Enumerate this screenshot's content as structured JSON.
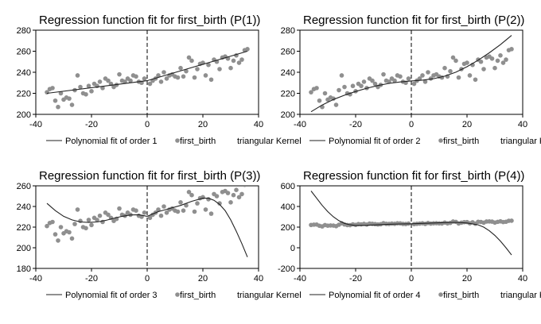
{
  "chart_data": [
    {
      "type": "scatter",
      "title": "Regression function fit for first_birth (P(1))",
      "xlabel": "",
      "ylabel": "",
      "xlim": [
        -40,
        40
      ],
      "ylim": [
        200,
        280
      ],
      "xticks": [
        "-40",
        "-20",
        "0",
        "20",
        "40"
      ],
      "yticks": [
        "200",
        "220",
        "240",
        "260",
        "280"
      ],
      "cutoff": 0,
      "legend": {
        "position": "bottom",
        "entries": [
          "Polynomial fit of order 1",
          "first_birth",
          "triangular Kernel"
        ]
      },
      "fit": {
        "x": [
          -36,
          0,
          0,
          36
        ],
        "y": [
          220,
          232,
          232,
          260
        ]
      },
      "points": {
        "x": [
          -36,
          -35,
          -34,
          -33,
          -32,
          -31,
          -30,
          -29,
          -28,
          -27,
          -26,
          -25,
          -24,
          -23,
          -22,
          -21,
          -20,
          -19,
          -18,
          -17,
          -16,
          -15,
          -14,
          -13,
          -12,
          -11,
          -10,
          -9,
          -8,
          -7,
          -6,
          -5,
          -4,
          -3,
          -2,
          -1,
          1,
          2,
          3,
          4,
          5,
          6,
          7,
          8,
          9,
          10,
          11,
          12,
          13,
          14,
          15,
          16,
          17,
          18,
          19,
          20,
          21,
          22,
          23,
          24,
          25,
          26,
          27,
          28,
          29,
          30,
          31,
          32,
          33,
          34,
          35,
          36
        ],
        "y": [
          221,
          224,
          225,
          213,
          207,
          220,
          214,
          216,
          215,
          209,
          223,
          237,
          226,
          220,
          219,
          227,
          222,
          229,
          227,
          231,
          225,
          234,
          232,
          229,
          226,
          228,
          238,
          232,
          231,
          234,
          232,
          237,
          236,
          231,
          230,
          234,
          229,
          232,
          234,
          237,
          231,
          240,
          234,
          237,
          238,
          236,
          235,
          244,
          236,
          241,
          254,
          251,
          235,
          243,
          248,
          249,
          237,
          247,
          233,
          252,
          250,
          243,
          254,
          255,
          253,
          244,
          251,
          256,
          249,
          252,
          261,
          262
        ]
      }
    },
    {
      "type": "scatter",
      "title": "Regression function fit for first_birth (P(2))",
      "xlabel": "",
      "ylabel": "",
      "xlim": [
        -40,
        40
      ],
      "ylim": [
        200,
        280
      ],
      "xticks": [
        "-40",
        "-20",
        "0",
        "20",
        "40"
      ],
      "yticks": [
        "200",
        "220",
        "240",
        "260",
        "280"
      ],
      "cutoff": 0,
      "legend": {
        "position": "bottom",
        "entries": [
          "Polynomial fit of order 2",
          "first_birth",
          "triangular Kernel"
        ]
      },
      "fit": {
        "x": [
          -36,
          -32,
          -28,
          -24,
          -20,
          -16,
          -12,
          -8,
          -4,
          0,
          0,
          4,
          8,
          12,
          16,
          20,
          24,
          28,
          32,
          36
        ],
        "y": [
          202.5,
          208.9,
          214.1,
          218.2,
          221.7,
          224.8,
          227.4,
          229.4,
          230.8,
          231.8,
          231.8,
          232.5,
          233.9,
          236.3,
          240.1,
          245.3,
          251.5,
          258.5,
          266.3,
          275
        ]
      },
      "points": {
        "x": [
          -36,
          -35,
          -34,
          -33,
          -32,
          -31,
          -30,
          -29,
          -28,
          -27,
          -26,
          -25,
          -24,
          -23,
          -22,
          -21,
          -20,
          -19,
          -18,
          -17,
          -16,
          -15,
          -14,
          -13,
          -12,
          -11,
          -10,
          -9,
          -8,
          -7,
          -6,
          -5,
          -4,
          -3,
          -2,
          -1,
          1,
          2,
          3,
          4,
          5,
          6,
          7,
          8,
          9,
          10,
          11,
          12,
          13,
          14,
          15,
          16,
          17,
          18,
          19,
          20,
          21,
          22,
          23,
          24,
          25,
          26,
          27,
          28,
          29,
          30,
          31,
          32,
          33,
          34,
          35,
          36
        ],
        "y": [
          221,
          224,
          225,
          213,
          207,
          220,
          214,
          216,
          215,
          209,
          223,
          237,
          226,
          220,
          219,
          227,
          222,
          229,
          227,
          231,
          225,
          234,
          232,
          229,
          226,
          228,
          238,
          232,
          231,
          234,
          232,
          237,
          236,
          231,
          230,
          234,
          229,
          232,
          234,
          237,
          231,
          240,
          234,
          237,
          238,
          236,
          235,
          244,
          236,
          241,
          254,
          251,
          235,
          243,
          248,
          249,
          237,
          247,
          233,
          252,
          250,
          243,
          254,
          255,
          253,
          244,
          251,
          256,
          249,
          252,
          261,
          262
        ]
      }
    },
    {
      "type": "scatter",
      "title": "Regression function fit for first_birth (P(3))",
      "xlabel": "",
      "ylabel": "",
      "xlim": [
        -40,
        40
      ],
      "ylim": [
        180,
        260
      ],
      "xticks": [
        "-40",
        "-20",
        "0",
        "20",
        "40"
      ],
      "yticks": [
        "180",
        "200",
        "220",
        "240",
        "260"
      ],
      "cutoff": 0,
      "legend": {
        "position": "bottom",
        "entries": [
          "Polynomial fit of order 3",
          "first_birth",
          "triangular Kernel"
        ]
      },
      "fit": {
        "x": [
          -36,
          -33,
          -30,
          -27,
          -24,
          -21,
          -18,
          -15,
          -12,
          -9,
          -6,
          -3,
          0,
          0,
          4,
          8,
          12,
          16,
          20,
          22,
          24,
          26,
          28,
          30,
          32,
          34,
          36
        ],
        "y": [
          243,
          236,
          230.5,
          227,
          225,
          224.5,
          225,
          226.5,
          228.5,
          230.5,
          231.8,
          232,
          230.5,
          230.5,
          235,
          238,
          241,
          245,
          248,
          248,
          246,
          242,
          236,
          227,
          216,
          204,
          191
        ]
      },
      "points": {
        "x": [
          -36,
          -35,
          -34,
          -33,
          -32,
          -31,
          -30,
          -29,
          -28,
          -27,
          -26,
          -25,
          -24,
          -23,
          -22,
          -21,
          -20,
          -19,
          -18,
          -17,
          -16,
          -15,
          -14,
          -13,
          -12,
          -11,
          -10,
          -9,
          -8,
          -7,
          -6,
          -5,
          -4,
          -3,
          -2,
          -1,
          1,
          2,
          3,
          4,
          5,
          6,
          7,
          8,
          9,
          10,
          11,
          12,
          13,
          14,
          15,
          16,
          17,
          18,
          19,
          20,
          21,
          22,
          23,
          24,
          25,
          26,
          27,
          28,
          29,
          30,
          31,
          32,
          33,
          34,
          35,
          36
        ],
        "y": [
          221,
          224,
          225,
          213,
          207,
          220,
          214,
          216,
          215,
          209,
          223,
          237,
          226,
          220,
          219,
          227,
          222,
          229,
          227,
          231,
          225,
          234,
          232,
          229,
          226,
          228,
          238,
          232,
          231,
          234,
          232,
          237,
          236,
          231,
          230,
          234,
          229,
          232,
          234,
          237,
          231,
          240,
          234,
          237,
          238,
          236,
          235,
          244,
          236,
          241,
          254,
          251,
          235,
          243,
          248,
          249,
          237,
          247,
          233,
          252,
          250,
          243,
          254,
          255,
          253,
          244,
          251,
          256,
          249,
          252,
          261,
          262
        ]
      }
    },
    {
      "type": "scatter",
      "title": "Regression function fit for first_birth (P(4))",
      "xlabel": "",
      "ylabel": "",
      "xlim": [
        -40,
        40
      ],
      "ylim": [
        -200,
        600
      ],
      "xticks": [
        "-40",
        "-20",
        "0",
        "20",
        "40"
      ],
      "yticks": [
        "-200",
        "0",
        "200",
        "400",
        "600"
      ],
      "cutoff": 0,
      "legend": {
        "position": "bottom",
        "entries": [
          "Polynomial fit of order 4",
          "first_birth",
          "triangular Kernel"
        ]
      },
      "fit": {
        "x": [
          -36,
          -34,
          -32,
          -30,
          -28,
          -26,
          -24,
          -22,
          -20,
          -16,
          -12,
          -8,
          -4,
          0,
          0,
          4,
          8,
          12,
          16,
          20,
          24,
          26,
          28,
          30,
          32,
          34,
          36
        ],
        "y": [
          550,
          480,
          410,
          350,
          300,
          262,
          236,
          222,
          216,
          218,
          222,
          228,
          231,
          232,
          232,
          236,
          240,
          244,
          246,
          240,
          222,
          200,
          165,
          120,
          65,
          0,
          -70
        ]
      },
      "points": {
        "x": [
          -36,
          -35,
          -34,
          -33,
          -32,
          -31,
          -30,
          -29,
          -28,
          -27,
          -26,
          -25,
          -24,
          -23,
          -22,
          -21,
          -20,
          -19,
          -18,
          -17,
          -16,
          -15,
          -14,
          -13,
          -12,
          -11,
          -10,
          -9,
          -8,
          -7,
          -6,
          -5,
          -4,
          -3,
          -2,
          -1,
          1,
          2,
          3,
          4,
          5,
          6,
          7,
          8,
          9,
          10,
          11,
          12,
          13,
          14,
          15,
          16,
          17,
          18,
          19,
          20,
          21,
          22,
          23,
          24,
          25,
          26,
          27,
          28,
          29,
          30,
          31,
          32,
          33,
          34,
          35,
          36
        ],
        "y": [
          221,
          224,
          225,
          213,
          207,
          220,
          214,
          216,
          215,
          209,
          223,
          237,
          226,
          220,
          219,
          227,
          222,
          229,
          227,
          231,
          225,
          234,
          232,
          229,
          226,
          228,
          238,
          232,
          231,
          234,
          232,
          237,
          236,
          231,
          230,
          234,
          229,
          232,
          234,
          237,
          231,
          240,
          234,
          237,
          238,
          236,
          235,
          244,
          236,
          241,
          254,
          251,
          235,
          243,
          248,
          249,
          237,
          247,
          233,
          252,
          250,
          243,
          254,
          255,
          253,
          244,
          251,
          256,
          249,
          252,
          261,
          262
        ]
      }
    }
  ]
}
